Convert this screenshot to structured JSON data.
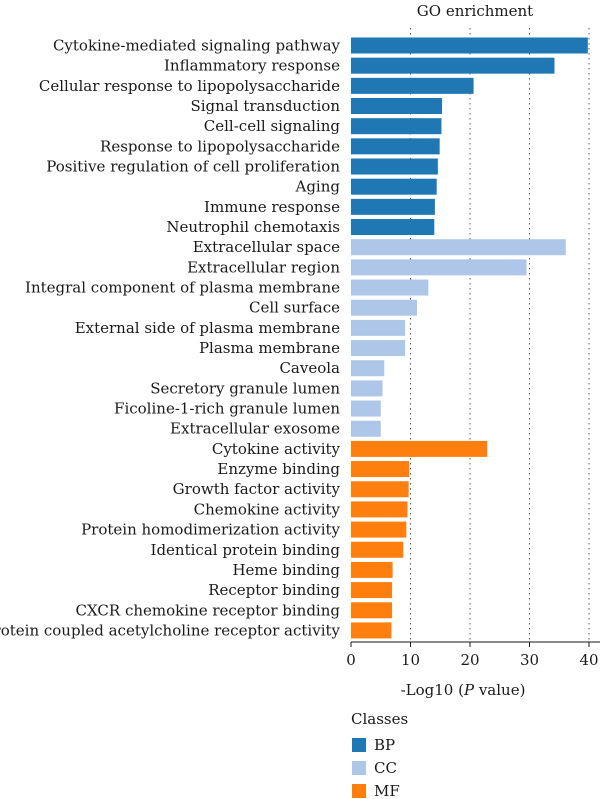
{
  "chart_data": {
    "type": "bar",
    "orientation": "horizontal",
    "title": "GO enrichment",
    "xlabel_prefix": "-Log10 (",
    "xlabel_italic": "P",
    "xlabel_suffix": " value)",
    "xlim": [
      0,
      40
    ],
    "xticks": [
      "0",
      "10",
      "20",
      "30",
      "40"
    ],
    "xtick_values": [
      0,
      10,
      20,
      30,
      40
    ],
    "grid": "vertical-dotted",
    "legend": {
      "title": "Classes",
      "position": "bottom-center",
      "items": [
        {
          "key": "BP",
          "label": "BP",
          "color": "#1f77b4"
        },
        {
          "key": "CC",
          "label": "CC",
          "color": "#aec7e8"
        },
        {
          "key": "MF",
          "label": "MF",
          "color": "#ff7f0e"
        }
      ]
    },
    "categories": [
      "Cytokine-mediated signaling pathway",
      "Inflammatory response",
      "Cellular response to lipopolysaccharide",
      "Signal transduction",
      "Cell-cell signaling",
      "Response to lipopolysaccharide",
      "Positive regulation of cell proliferation",
      "Aging",
      "Immune response",
      "Neutrophil chemotaxis",
      "Extracellular space",
      "Extracellular region",
      "Integral component of plasma membrane",
      "Cell surface",
      "External side of plasma membrane",
      "Plasma membrane",
      "Caveola",
      "Secretory granule lumen",
      "Ficoline-1-rich granule lumen",
      "Extracellular exosome",
      "Cytokine activity",
      "Enzyme binding",
      "Growth factor activity",
      "Chemokine activity",
      "Protein homodimerization activity",
      "Identical protein binding",
      "Heme binding",
      "Receptor binding",
      "CXCR chemokine receptor binding",
      "G-protein coupled acetylcholine receptor activity"
    ],
    "values": [
      39.8,
      34.2,
      20.6,
      15.3,
      15.2,
      14.9,
      14.6,
      14.4,
      14.1,
      14.0,
      36.1,
      29.5,
      13.0,
      11.1,
      9.1,
      9.1,
      5.6,
      5.3,
      5.0,
      5.0,
      22.9,
      9.8,
      9.7,
      9.5,
      9.3,
      8.8,
      7.0,
      6.9,
      6.9,
      6.8
    ],
    "classes": [
      "BP",
      "BP",
      "BP",
      "BP",
      "BP",
      "BP",
      "BP",
      "BP",
      "BP",
      "BP",
      "CC",
      "CC",
      "CC",
      "CC",
      "CC",
      "CC",
      "CC",
      "CC",
      "CC",
      "CC",
      "MF",
      "MF",
      "MF",
      "MF",
      "MF",
      "MF",
      "MF",
      "MF",
      "MF",
      "MF"
    ]
  }
}
